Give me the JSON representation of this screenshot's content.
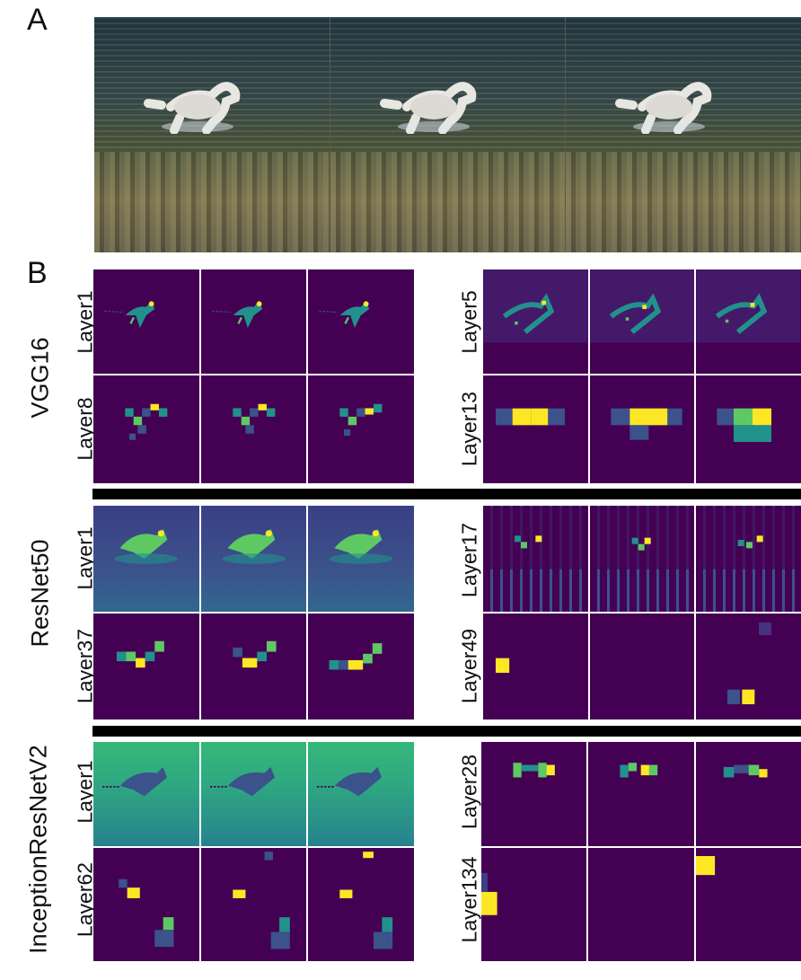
{
  "panels": {
    "a": "A",
    "b": "B"
  },
  "models": [
    {
      "name": "VGG16",
      "layers": [
        "Layer1",
        "Layer5",
        "Layer8",
        "Layer13"
      ]
    },
    {
      "name": "ResNet50",
      "layers": [
        "Layer1",
        "Layer17",
        "Layer37",
        "Layer49"
      ]
    },
    {
      "name": "InceptionResNetV2",
      "layers": [
        "Layer1",
        "Layer28",
        "Layer62",
        "Layer134"
      ]
    }
  ],
  "colors": {
    "background": "#440154",
    "low": "#3b528b",
    "mid": "#21918c",
    "high": "#5ec962",
    "peak": "#fde725"
  }
}
